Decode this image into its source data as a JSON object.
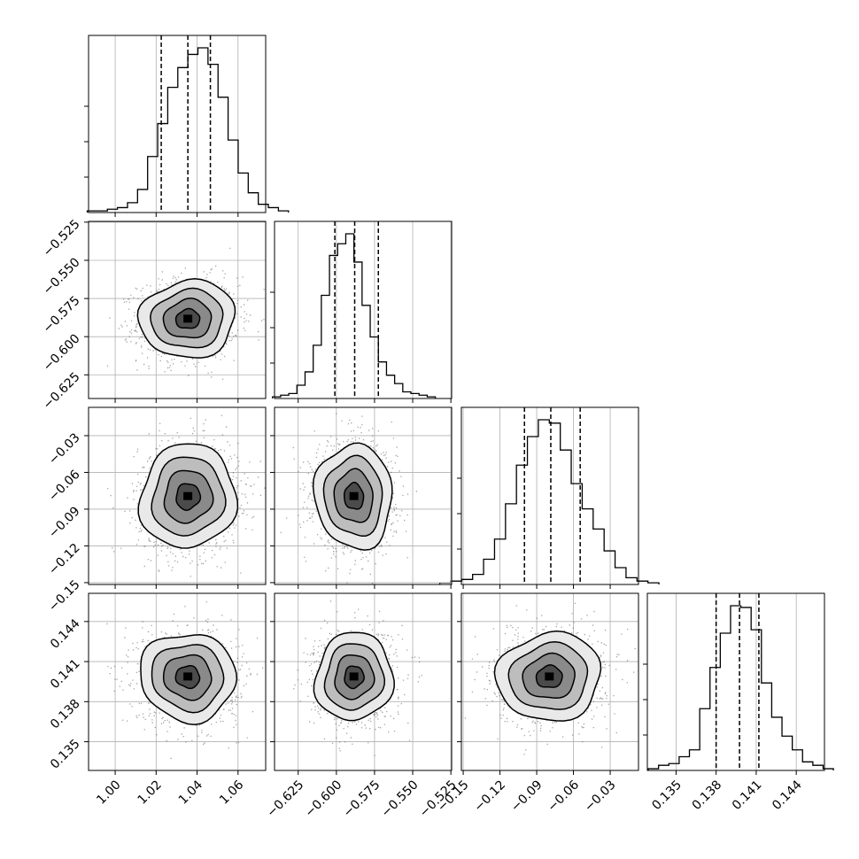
{
  "chart_data": {
    "type": "corner",
    "grid": true,
    "parameters": [
      {
        "center": 1.0355,
        "sigma": 0.0117,
        "range": [
          0.987,
          1.0735
        ],
        "ticks": [
          1.0,
          1.02,
          1.04,
          1.06
        ],
        "tick_labels": [
          "1.00",
          "1.02",
          "1.04",
          "1.06"
        ],
        "quantiles": [
          1.0225,
          1.0355,
          1.0465
        ],
        "hist": [
          1,
          1,
          2,
          3,
          6,
          14,
          34,
          54,
          76,
          88,
          96,
          100,
          90,
          70,
          44,
          24,
          12,
          5,
          3,
          1
        ]
      },
      {
        "center": -0.5885,
        "sigma": 0.0127,
        "range": [
          -0.6405,
          -0.5245
        ],
        "ticks": [
          -0.625,
          -0.6,
          -0.575,
          -0.55,
          -0.525
        ],
        "tick_labels": [
          "−0.625",
          "−0.600",
          "−0.575",
          "−0.550",
          "−0.525"
        ],
        "quantiles": [
          -0.601,
          -0.588,
          -0.5725
        ],
        "hist": [
          1,
          2,
          3,
          8,
          16,
          32,
          62,
          86,
          93,
          99,
          82,
          56,
          37,
          22,
          14,
          9,
          4,
          3,
          2,
          1
        ]
      },
      {
        "center": -0.0797,
        "sigma": 0.0213,
        "range": [
          -0.1515,
          -0.0069
        ],
        "ticks": [
          -0.15,
          -0.12,
          -0.09,
          -0.06,
          -0.03
        ],
        "tick_labels": [
          "−0.15",
          "−0.12",
          "−0.09",
          "−0.06",
          "−0.03"
        ],
        "quantiles": [
          -0.1,
          -0.0785,
          -0.0545
        ],
        "hist": [
          1,
          2,
          3,
          6,
          15,
          27,
          48,
          71,
          88,
          98,
          96,
          80,
          60,
          45,
          33,
          20,
          10,
          4,
          2,
          1
        ]
      },
      {
        "center": 0.13985,
        "sigma": 0.00165,
        "range": [
          0.13285,
          0.14611
        ],
        "ticks": [
          0.135,
          0.138,
          0.141,
          0.144
        ],
        "tick_labels": [
          "0.135",
          "0.138",
          "0.141",
          "0.144"
        ],
        "quantiles": [
          0.138,
          0.13975,
          0.1412
        ],
        "hist": [
          1,
          3,
          4,
          8,
          12,
          36,
          60,
          80,
          96,
          95,
          82,
          51,
          31,
          20,
          12,
          5,
          3,
          1
        ]
      }
    ],
    "correlations": [
      {
        "pair": [
          1,
          0
        ],
        "rho": 0.05
      },
      {
        "pair": [
          2,
          0
        ],
        "rho": 0.05
      },
      {
        "pair": [
          2,
          1
        ],
        "rho": -0.05
      },
      {
        "pair": [
          3,
          0
        ],
        "rho": -0.05
      },
      {
        "pair": [
          3,
          1
        ],
        "rho": 0.05
      },
      {
        "pair": [
          3,
          2
        ],
        "rho": 0.05
      }
    ],
    "contour_levels_sigma": [
      0.5,
      1.0,
      1.5,
      2.0
    ]
  }
}
